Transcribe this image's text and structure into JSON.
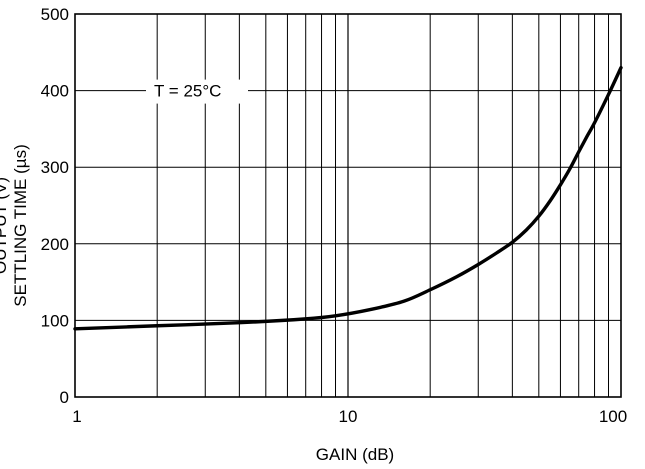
{
  "chart_data": {
    "type": "line",
    "x_scale": "log",
    "xlabel": "GAIN (dB)",
    "ylabel": "SETTLING TIME (µs)",
    "ylabel_partial": "OUTPUT (V)",
    "annotation": "T = 25°C",
    "xlim": [
      1,
      100
    ],
    "ylim": [
      0,
      500
    ],
    "x_ticks": [
      1,
      10,
      100
    ],
    "x_tick_labels": [
      "1",
      "10",
      "100"
    ],
    "y_ticks": [
      0,
      100,
      200,
      300,
      400,
      500
    ],
    "y_tick_labels": [
      "0",
      "100",
      "200",
      "300",
      "400",
      "500"
    ],
    "grid": true,
    "series": [
      {
        "x": [
          1,
          2,
          4,
          7,
          9,
          12,
          16,
          20,
          25,
          30,
          35,
          40,
          45,
          50,
          55,
          60,
          65,
          70,
          75,
          80,
          90,
          100
        ],
        "y": [
          89,
          93,
          97,
          102,
          106,
          114,
          125,
          140,
          157,
          173,
          188,
          202,
          218,
          236,
          256,
          277,
          298,
          320,
          340,
          358,
          395,
          430
        ]
      }
    ]
  }
}
